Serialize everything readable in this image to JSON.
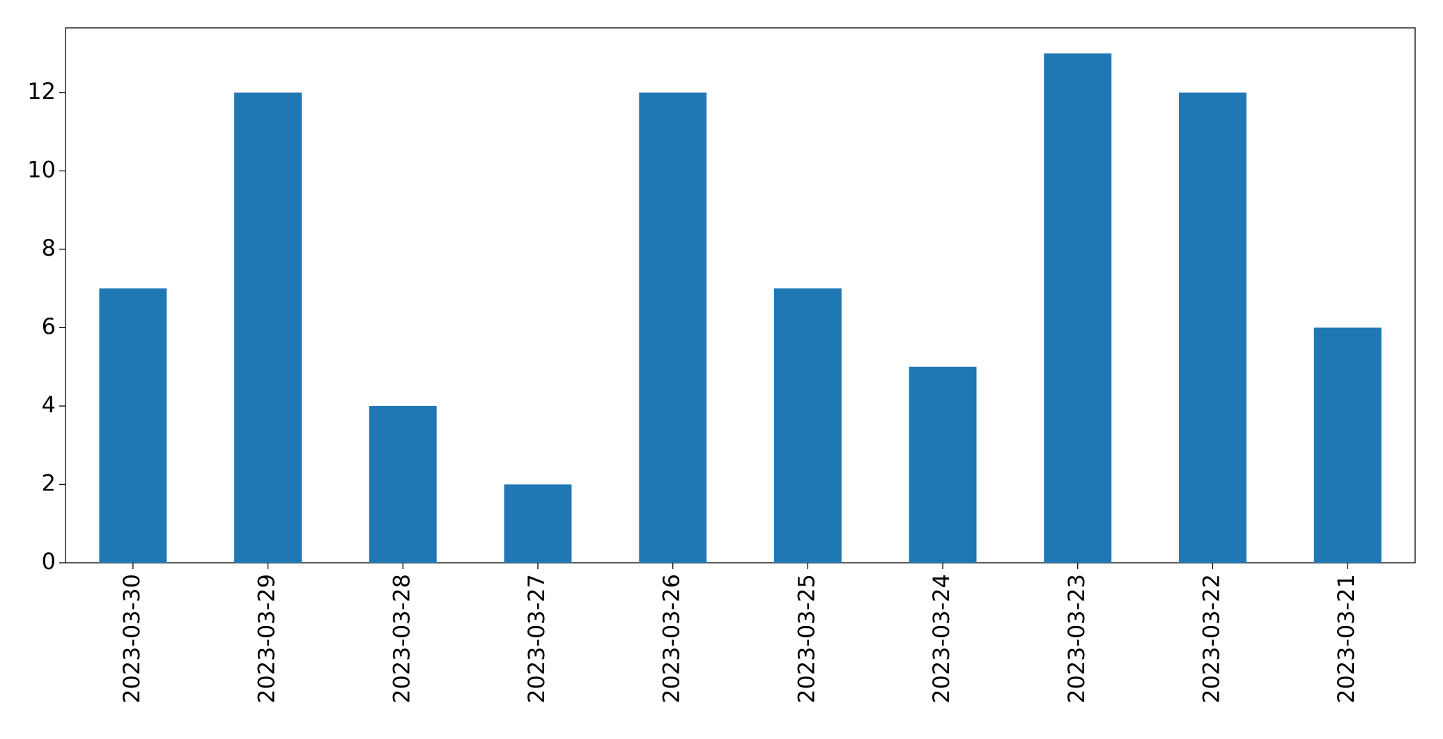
{
  "chart_data": {
    "type": "bar",
    "categories": [
      "2023-03-30",
      "2023-03-29",
      "2023-03-28",
      "2023-03-27",
      "2023-03-26",
      "2023-03-25",
      "2023-03-24",
      "2023-03-23",
      "2023-03-22",
      "2023-03-21"
    ],
    "values": [
      7,
      12,
      4,
      2,
      12,
      7,
      5,
      13,
      12,
      6
    ],
    "color": "#1f77b4",
    "ylim": [
      0,
      13.65
    ],
    "yticks": [
      0,
      2,
      4,
      6,
      8,
      10,
      12
    ],
    "grid": false
  }
}
